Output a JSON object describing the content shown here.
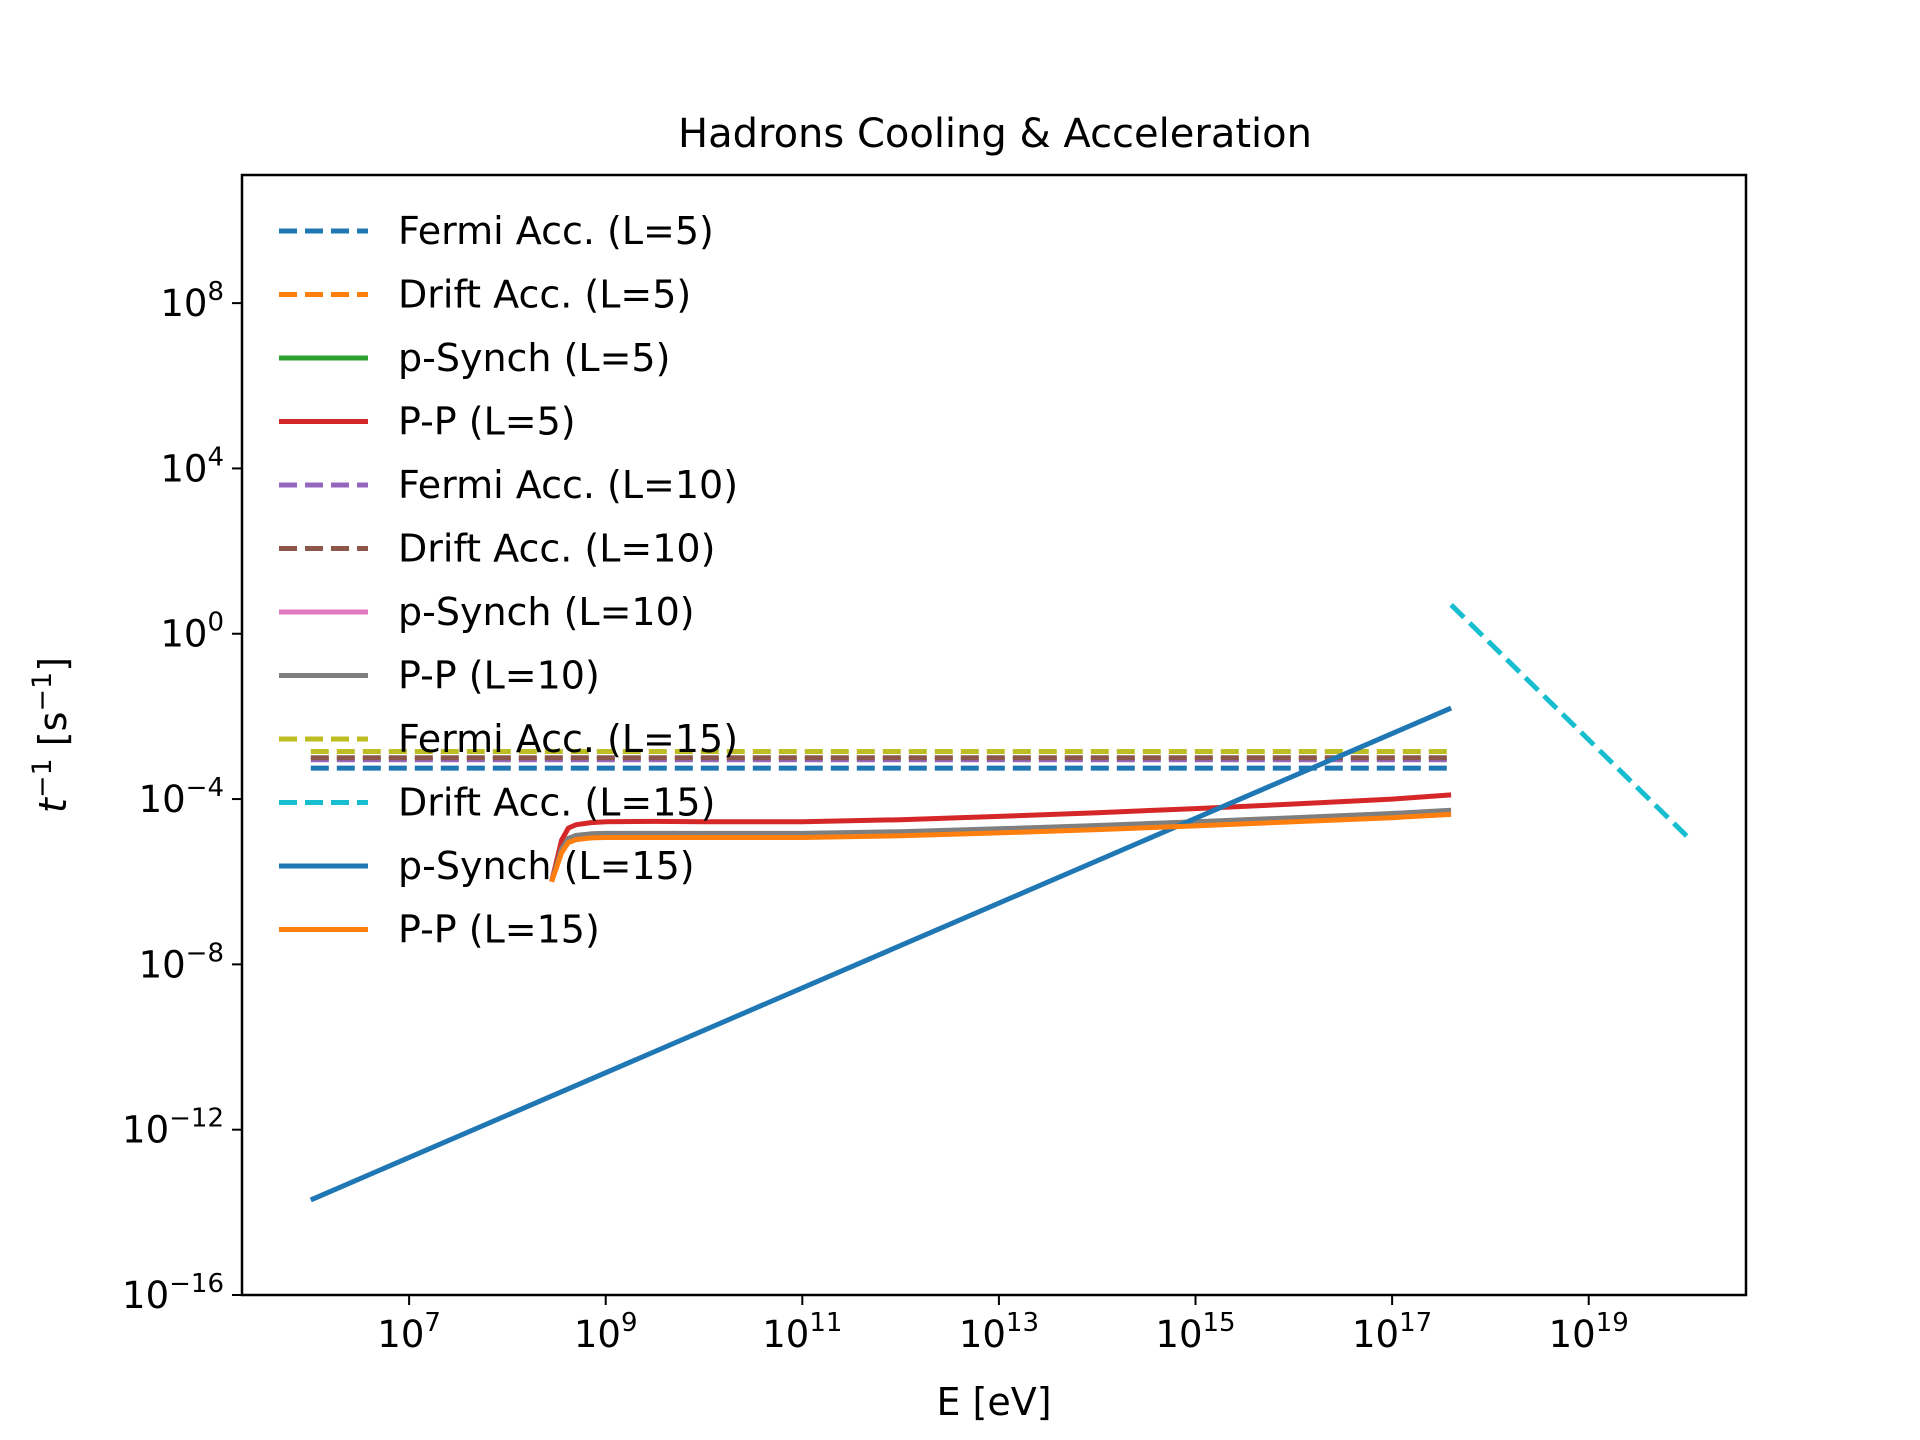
{
  "chart_data": {
    "type": "line",
    "title": "Hadrons Cooling & Acceleration",
    "xlabel": "E [eV]",
    "ylabel_main": "t",
    "ylabel_exp": "−1",
    "ylabel_unit_open": "[s",
    "ylabel_unit_exp": "−1",
    "ylabel_unit_close": "]",
    "x_scale": "log",
    "y_scale": "log",
    "xlim_log10": [
      5.3,
      20.6
    ],
    "ylim_log10": [
      -16,
      11.1
    ],
    "x_ticks": [
      {
        "base": "10",
        "exp": "7",
        "log10": 7
      },
      {
        "base": "10",
        "exp": "9",
        "log10": 9
      },
      {
        "base": "10",
        "exp": "11",
        "log10": 11
      },
      {
        "base": "10",
        "exp": "13",
        "log10": 13
      },
      {
        "base": "10",
        "exp": "15",
        "log10": 15
      },
      {
        "base": "10",
        "exp": "17",
        "log10": 17
      },
      {
        "base": "10",
        "exp": "19",
        "log10": 19
      }
    ],
    "y_ticks": [
      {
        "base": "10",
        "exp": "−16",
        "log10": -16
      },
      {
        "base": "10",
        "exp": "−12",
        "log10": -12
      },
      {
        "base": "10",
        "exp": "−8",
        "log10": -8
      },
      {
        "base": "10",
        "exp": "−4",
        "log10": -4
      },
      {
        "base": "10",
        "exp": "0",
        "log10": 0
      },
      {
        "base": "10",
        "exp": "4",
        "log10": 4
      },
      {
        "base": "10",
        "exp": "8",
        "log10": 8
      }
    ],
    "grid": false,
    "legend_position": "upper-left",
    "series": [
      {
        "name": "Fermi Acc. (L=5)",
        "color": "#1f77b4",
        "style": "dashed",
        "x_log10": [
          6.0,
          17.6
        ],
        "y_log10": [
          -3.25,
          -3.25
        ]
      },
      {
        "name": "Drift Acc. (L=5)",
        "color": "#ff7f0e",
        "style": "dashed",
        "x_log10": [],
        "y_log10": []
      },
      {
        "name": "p-Synch (L=5)",
        "color": "#2ca02c",
        "style": "solid",
        "x_log10": [],
        "y_log10": []
      },
      {
        "name": "P-P (L=5)",
        "color": "#d62728",
        "style": "solid",
        "x_log10": [
          8.45,
          8.5,
          8.55,
          8.62,
          8.7,
          8.85,
          9.0,
          9.5,
          10,
          11,
          12,
          13,
          14,
          15,
          16,
          17,
          17.6
        ],
        "y_log10": [
          -6.0,
          -5.5,
          -5.0,
          -4.7,
          -4.62,
          -4.57,
          -4.55,
          -4.54,
          -4.55,
          -4.55,
          -4.5,
          -4.42,
          -4.33,
          -4.23,
          -4.12,
          -4.0,
          -3.9
        ]
      },
      {
        "name": "Fermi Acc. (L=10)",
        "color": "#9467bd",
        "style": "dashed",
        "x_log10": [
          6.0,
          17.6
        ],
        "y_log10": [
          -3.05,
          -3.05
        ]
      },
      {
        "name": "Drift Acc. (L=10)",
        "color": "#8c564b",
        "style": "dashed",
        "x_log10": [
          6.0,
          17.6
        ],
        "y_log10": [
          -3.0,
          -3.0
        ]
      },
      {
        "name": "p-Synch (L=10)",
        "color": "#e377c2",
        "style": "solid",
        "x_log10": [],
        "y_log10": []
      },
      {
        "name": "P-P (L=10)",
        "color": "#7f7f7f",
        "style": "solid",
        "x_log10": [
          8.45,
          8.5,
          8.55,
          8.62,
          8.7,
          8.85,
          9.0,
          9.5,
          10,
          11,
          12,
          13,
          14,
          15,
          16,
          17,
          17.6
        ],
        "y_log10": [
          -6.0,
          -5.6,
          -5.2,
          -4.95,
          -4.88,
          -4.84,
          -4.83,
          -4.83,
          -4.83,
          -4.83,
          -4.79,
          -4.72,
          -4.64,
          -4.55,
          -4.45,
          -4.35,
          -4.27
        ]
      },
      {
        "name": "Fermi Acc. (L=15)",
        "color": "#bcbd22",
        "style": "dashed",
        "x_log10": [
          6.0,
          17.6
        ],
        "y_log10": [
          -2.85,
          -2.85
        ]
      },
      {
        "name": "Drift Acc. (L=15)",
        "color": "#17becf",
        "style": "dashed",
        "x_log10": [
          17.6,
          20.0
        ],
        "y_log10": [
          0.7,
          -4.9
        ]
      },
      {
        "name": "p-Synch (L=15)",
        "color": "#1f77b4",
        "style": "solid",
        "x_log10": [
          6.0,
          17.6
        ],
        "y_log10": [
          -13.7,
          -1.8
        ]
      },
      {
        "name": "P-P (L=15)",
        "color": "#ff7f0e",
        "style": "solid",
        "x_log10": [
          8.45,
          8.5,
          8.55,
          8.62,
          8.7,
          8.85,
          9.0,
          9.5,
          10,
          11,
          12,
          13,
          14,
          15,
          16,
          17,
          17.6
        ],
        "y_log10": [
          -6.0,
          -5.65,
          -5.3,
          -5.05,
          -4.98,
          -4.94,
          -4.93,
          -4.93,
          -4.93,
          -4.93,
          -4.89,
          -4.82,
          -4.74,
          -4.65,
          -4.55,
          -4.45,
          -4.37
        ]
      }
    ]
  }
}
